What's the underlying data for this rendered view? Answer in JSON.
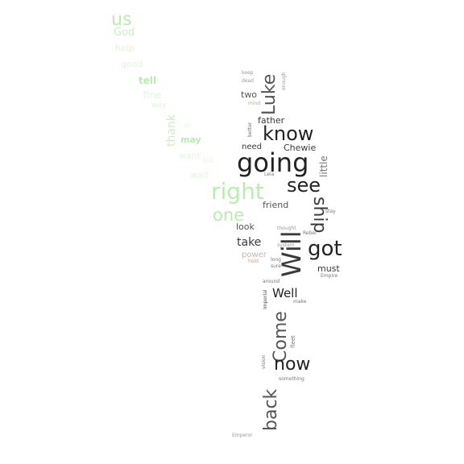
{
  "words": [
    "us",
    "God",
    "help",
    "good",
    "tell",
    "fine",
    "way",
    "thank",
    "ok",
    "may",
    "want",
    "wait",
    "kid",
    "right",
    "one",
    "Luke",
    "two",
    "father",
    "know",
    "going",
    "see",
    "Chewie",
    "need",
    "little",
    "friend",
    "Will",
    "ship",
    "look",
    "take",
    "got",
    "power",
    "must",
    "Well",
    "Come",
    "back",
    "now",
    "Emperor",
    "keep",
    "dead",
    "mind",
    "enough",
    "better",
    "Leia",
    "thought",
    "Rebel",
    "system",
    "long",
    "around",
    "Empire",
    "something",
    "Imperial",
    "make",
    "vision",
    "fleet",
    "hold",
    "sure",
    "stay"
  ]
}
